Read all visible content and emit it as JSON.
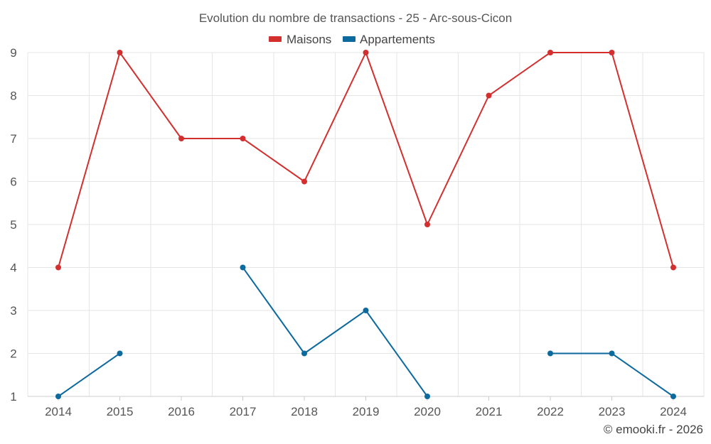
{
  "chart_data": {
    "type": "line",
    "title": "Evolution du nombre de transactions - 25 - Arc-sous-Cicon",
    "categories": [
      "2014",
      "2015",
      "2016",
      "2017",
      "2018",
      "2019",
      "2020",
      "2021",
      "2022",
      "2023",
      "2024"
    ],
    "series": [
      {
        "name": "Maisons",
        "color": "#d32f2f",
        "values": [
          4,
          9,
          7,
          7,
          6,
          9,
          5,
          8,
          9,
          9,
          4
        ]
      },
      {
        "name": "Appartements",
        "color": "#0d6a9e",
        "values": [
          1,
          2,
          null,
          4,
          2,
          3,
          1,
          null,
          2,
          2,
          1
        ]
      }
    ],
    "ylim": [
      1,
      9
    ],
    "yticks": [
      1,
      2,
      3,
      4,
      5,
      6,
      7,
      8,
      9
    ],
    "grid": true,
    "legend": "top-center",
    "xlabel": "",
    "ylabel": ""
  },
  "credit": "© emooki.fr - 2026"
}
